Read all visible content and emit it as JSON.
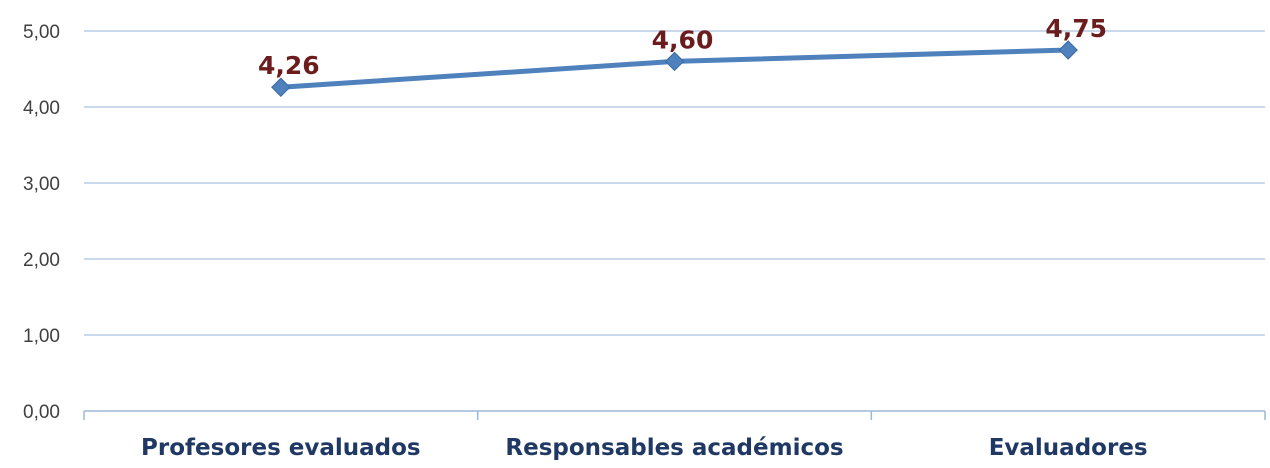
{
  "chart_data": {
    "type": "line",
    "categories": [
      "Profesores evaluados",
      "Responsables académicos",
      "Evaluadores"
    ],
    "series": [
      {
        "values": [
          4.26,
          4.6,
          4.75
        ],
        "labels": [
          "4,26",
          "4,60",
          "4,75"
        ]
      }
    ],
    "yticks": [
      "0,00",
      "1,00",
      "2,00",
      "3,00",
      "4,00",
      "5,00"
    ],
    "ylim": [
      0,
      5
    ],
    "grid": true,
    "legend": "none",
    "colors": {
      "line": "#4f81bd",
      "marker": "#4f81bd",
      "gridline": "#a9c1de",
      "axis": "#9bb7d9",
      "data_label": "#6b1d1d",
      "category_label": "#1f3864",
      "tick_label": "#404040"
    }
  }
}
